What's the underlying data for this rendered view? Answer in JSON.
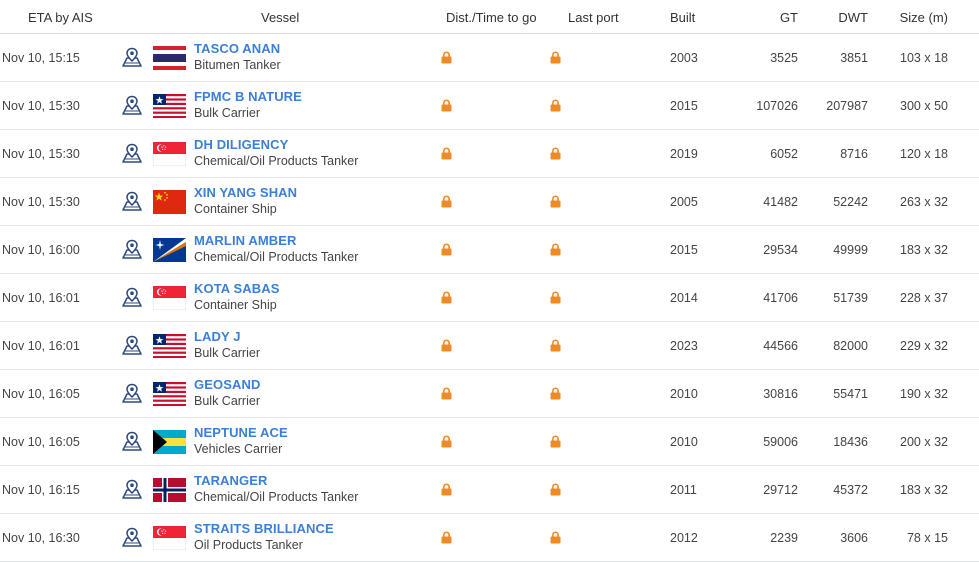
{
  "columns": {
    "eta": "ETA by AIS",
    "vessel": "Vessel",
    "dist": "Dist./Time to go",
    "last_port": "Last port",
    "built": "Built",
    "gt": "GT",
    "dwt": "DWT",
    "size": "Size (m)"
  },
  "icons": {
    "map": "map-pin-icon",
    "lock": "lock-icon"
  },
  "colors": {
    "vessel_link": "#3b7fd6",
    "lock": "#f08a24",
    "map_icon": "#2f4a7a"
  },
  "rows": [
    {
      "eta": "Nov 10, 15:15",
      "name": "TASCO ANAN",
      "type": "Bitumen Tanker",
      "flag": "thailand",
      "built": "2003",
      "gt": "3525",
      "dwt": "3851",
      "size": "103 x 18"
    },
    {
      "eta": "Nov 10, 15:30",
      "name": "FPMC B NATURE",
      "type": "Bulk Carrier",
      "flag": "liberia",
      "built": "2015",
      "gt": "107026",
      "dwt": "207987",
      "size": "300 x 50"
    },
    {
      "eta": "Nov 10, 15:30",
      "name": "DH DILIGENCY",
      "type": "Chemical/Oil Products Tanker",
      "flag": "singapore",
      "built": "2019",
      "gt": "6052",
      "dwt": "8716",
      "size": "120 x 18"
    },
    {
      "eta": "Nov 10, 15:30",
      "name": "XIN YANG SHAN",
      "type": "Container Ship",
      "flag": "china",
      "built": "2005",
      "gt": "41482",
      "dwt": "52242",
      "size": "263 x 32"
    },
    {
      "eta": "Nov 10, 16:00",
      "name": "MARLIN AMBER",
      "type": "Chemical/Oil Products Tanker",
      "flag": "marshall-islands",
      "built": "2015",
      "gt": "29534",
      "dwt": "49999",
      "size": "183 x 32"
    },
    {
      "eta": "Nov 10, 16:01",
      "name": "KOTA SABAS",
      "type": "Container Ship",
      "flag": "singapore",
      "built": "2014",
      "gt": "41706",
      "dwt": "51739",
      "size": "228 x 37"
    },
    {
      "eta": "Nov 10, 16:01",
      "name": "LADY J",
      "type": "Bulk Carrier",
      "flag": "liberia",
      "built": "2023",
      "gt": "44566",
      "dwt": "82000",
      "size": "229 x 32"
    },
    {
      "eta": "Nov 10, 16:05",
      "name": "GEOSAND",
      "type": "Bulk Carrier",
      "flag": "liberia",
      "built": "2010",
      "gt": "30816",
      "dwt": "55471",
      "size": "190 x 32"
    },
    {
      "eta": "Nov 10, 16:05",
      "name": "NEPTUNE ACE",
      "type": "Vehicles Carrier",
      "flag": "bahamas",
      "built": "2010",
      "gt": "59006",
      "dwt": "18436",
      "size": "200 x 32"
    },
    {
      "eta": "Nov 10, 16:15",
      "name": "TARANGER",
      "type": "Chemical/Oil Products Tanker",
      "flag": "norway",
      "built": "2011",
      "gt": "29712",
      "dwt": "45372",
      "size": "183 x 32"
    },
    {
      "eta": "Nov 10, 16:30",
      "name": "STRAITS BRILLIANCE",
      "type": "Oil Products Tanker",
      "flag": "singapore",
      "built": "2012",
      "gt": "2239",
      "dwt": "3606",
      "size": "78 x 15"
    }
  ]
}
